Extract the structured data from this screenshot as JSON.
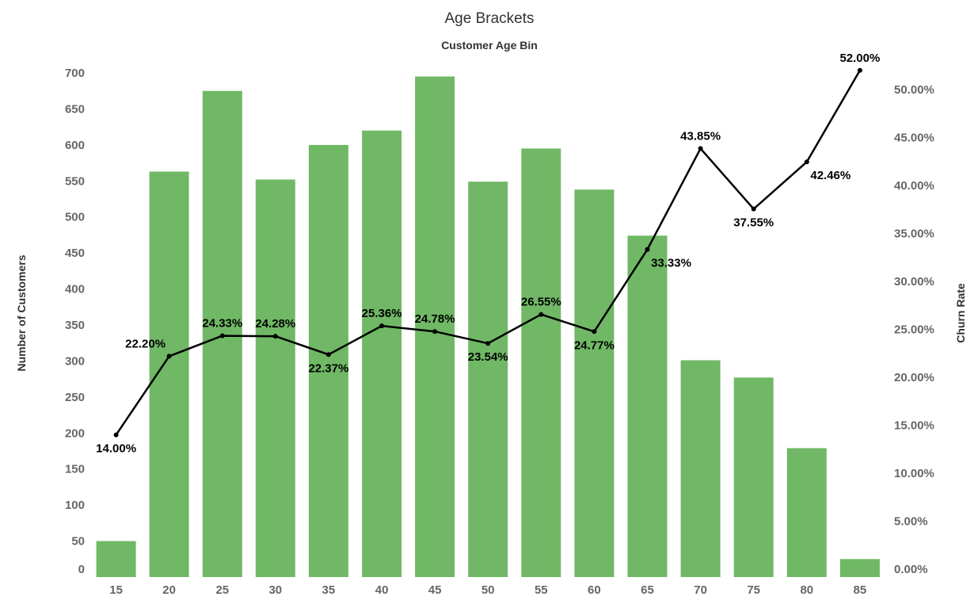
{
  "chart_data": {
    "type": "bar",
    "title": "Age Brackets",
    "subtitle": "Customer Age Bin",
    "ylabel": "Number of Customers",
    "y2label": "Churn Rate",
    "categories": [
      "15",
      "20",
      "25",
      "30",
      "35",
      "40",
      "45",
      "50",
      "55",
      "60",
      "65",
      "70",
      "75",
      "80",
      "85"
    ],
    "series": [
      {
        "name": "Number of Customers",
        "type": "bar",
        "axis": "left",
        "color": "#70b865",
        "values": [
          50,
          563,
          675,
          552,
          600,
          620,
          695,
          549,
          595,
          538,
          474,
          301,
          277,
          179,
          25
        ]
      },
      {
        "name": "Churn Rate",
        "type": "line",
        "axis": "right",
        "color": "#000000",
        "values": [
          14.0,
          22.2,
          24.33,
          24.28,
          22.37,
          25.36,
          24.78,
          23.54,
          26.55,
          24.77,
          33.33,
          43.85,
          37.55,
          42.46,
          52.0
        ],
        "labels": [
          "14.00%",
          "22.20%",
          "24.33%",
          "24.28%",
          "22.37%",
          "25.36%",
          "24.78%",
          "23.54%",
          "26.55%",
          "24.77%",
          "33.33%",
          "43.85%",
          "37.55%",
          "42.46%",
          "52.00%"
        ]
      }
    ],
    "y_ticks": [
      "0",
      "50",
      "100",
      "150",
      "200",
      "250",
      "300",
      "350",
      "400",
      "450",
      "500",
      "550",
      "600",
      "650",
      "700"
    ],
    "y_tick_values": [
      0,
      50,
      100,
      150,
      200,
      250,
      300,
      350,
      400,
      450,
      500,
      550,
      600,
      650,
      700
    ],
    "y2_ticks": [
      "0.00%",
      "5.00%",
      "10.00%",
      "15.00%",
      "20.00%",
      "25.00%",
      "30.00%",
      "35.00%",
      "40.00%",
      "45.00%",
      "50.00%"
    ],
    "y2_tick_values": [
      0,
      5,
      10,
      15,
      20,
      25,
      30,
      35,
      40,
      45,
      50
    ],
    "ylim": [
      0,
      700
    ],
    "y2lim": [
      0,
      52
    ],
    "grid": false,
    "legend": "none"
  }
}
